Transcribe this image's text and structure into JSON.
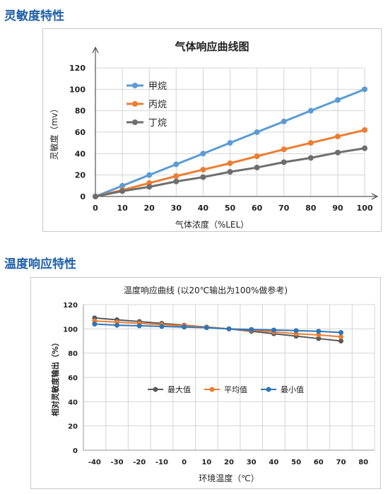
{
  "sections": {
    "sensitivity_title": "灵敏度特性",
    "temperature_title": "温度响应特性"
  },
  "chart_data": [
    {
      "type": "line",
      "title": "气体响应曲线图",
      "xlabel": "气体浓度（%LEL）",
      "ylabel": "灵敏度（mv）",
      "categories": [
        0,
        10,
        20,
        30,
        40,
        50,
        60,
        70,
        80,
        90,
        100
      ],
      "ylim": [
        0,
        120
      ],
      "yticks": [
        0,
        20,
        40,
        60,
        80,
        100,
        120
      ],
      "grid": true,
      "legend": "top-left",
      "series": [
        {
          "name": "甲烷",
          "color": "#5b9bd5",
          "values": [
            0,
            10,
            20,
            30,
            40,
            50,
            60,
            70,
            80,
            90,
            100
          ]
        },
        {
          "name": "丙烷",
          "color": "#ed7d31",
          "values": [
            0,
            6,
            12.5,
            19,
            25,
            31,
            37.5,
            44,
            50,
            56,
            62
          ]
        },
        {
          "name": "丁烷",
          "color": "#6e6e6e",
          "values": [
            0,
            5,
            9,
            14,
            18,
            23,
            27,
            32,
            36,
            41,
            45
          ]
        }
      ]
    },
    {
      "type": "line",
      "title": "温度响应曲线 (以20℃输出为100%做参考)",
      "xlabel": "环境温度（℃）",
      "ylabel": "相对灵敏度输出（%）",
      "xticks": [
        -40,
        -30,
        -20,
        -10,
        0,
        10,
        20,
        30,
        40,
        50,
        60,
        70,
        80
      ],
      "x": [
        -40,
        -30,
        -20,
        -10,
        0,
        10,
        20,
        30,
        40,
        50,
        60,
        70
      ],
      "xlim": [
        -40,
        80
      ],
      "ylim": [
        0,
        120
      ],
      "yticks": [
        0,
        20,
        40,
        60,
        80,
        100,
        120
      ],
      "grid": true,
      "legend": "center",
      "series": [
        {
          "name": "最大值",
          "color": "#595959",
          "values": [
            109,
            107.5,
            106,
            104.5,
            103,
            101.5,
            100,
            98,
            96,
            94,
            92,
            90
          ]
        },
        {
          "name": "平均值",
          "color": "#ed7d31",
          "values": [
            106.5,
            105.5,
            104.5,
            103.5,
            102.5,
            101.5,
            100,
            99,
            97.5,
            96,
            95,
            93.5
          ]
        },
        {
          "name": "最小值",
          "color": "#2e75b6",
          "values": [
            104,
            103,
            102.5,
            102,
            101.5,
            101,
            100,
            99.5,
            99,
            98.5,
            98,
            97
          ]
        }
      ]
    }
  ]
}
